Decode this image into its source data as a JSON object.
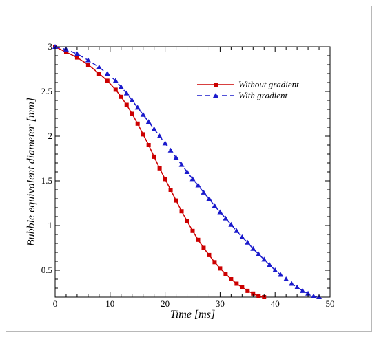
{
  "chart_data": {
    "type": "line",
    "xlabel": "Time [ms]",
    "ylabel": "Bubble equivalent diameter [mm]",
    "xlim": [
      0,
      50
    ],
    "ylim": [
      0.2,
      3.0
    ],
    "xticks": [
      0,
      10,
      20,
      30,
      40,
      50
    ],
    "yticks": [
      0.5,
      1,
      1.5,
      2,
      2.5,
      3
    ],
    "ytick_labels": [
      "0.5",
      "1",
      "1.5",
      "2",
      "2.5",
      "3"
    ],
    "grid": false,
    "legend_position": "top-right",
    "series": [
      {
        "name": "Without gradient",
        "color": "#cc0000",
        "line_style": "solid",
        "marker": "square",
        "x": [
          0,
          2,
          4,
          6,
          8,
          9.5,
          11,
          12,
          13,
          14,
          15,
          16,
          17,
          18,
          19,
          20,
          21,
          22,
          23,
          24,
          25,
          26,
          27,
          28,
          29,
          30,
          31,
          32,
          33,
          34,
          35,
          36,
          37,
          38
        ],
        "y": [
          3.0,
          2.94,
          2.88,
          2.8,
          2.7,
          2.62,
          2.52,
          2.44,
          2.35,
          2.25,
          2.14,
          2.02,
          1.9,
          1.77,
          1.64,
          1.52,
          1.4,
          1.28,
          1.16,
          1.05,
          0.94,
          0.84,
          0.75,
          0.67,
          0.59,
          0.52,
          0.46,
          0.4,
          0.35,
          0.31,
          0.27,
          0.24,
          0.21,
          0.2
        ]
      },
      {
        "name": "With gradient",
        "color": "#1a1acc",
        "line_style": "dashed",
        "marker": "triangle",
        "x": [
          0,
          2,
          4,
          6,
          8,
          9.5,
          11,
          12,
          13,
          14,
          15,
          16,
          17,
          18,
          19,
          20,
          21,
          22,
          23,
          24,
          25,
          26,
          27,
          28,
          29,
          30,
          31,
          32,
          33,
          34,
          35,
          36,
          37,
          38,
          39,
          40,
          41,
          42,
          43,
          44,
          45,
          46,
          47,
          48
        ],
        "y": [
          3.0,
          2.97,
          2.92,
          2.85,
          2.77,
          2.7,
          2.62,
          2.55,
          2.48,
          2.4,
          2.32,
          2.24,
          2.16,
          2.08,
          2.0,
          1.92,
          1.84,
          1.76,
          1.68,
          1.6,
          1.52,
          1.45,
          1.37,
          1.3,
          1.22,
          1.15,
          1.08,
          1.01,
          0.94,
          0.87,
          0.81,
          0.74,
          0.68,
          0.62,
          0.56,
          0.5,
          0.45,
          0.4,
          0.35,
          0.31,
          0.27,
          0.24,
          0.21,
          0.2
        ]
      }
    ]
  }
}
